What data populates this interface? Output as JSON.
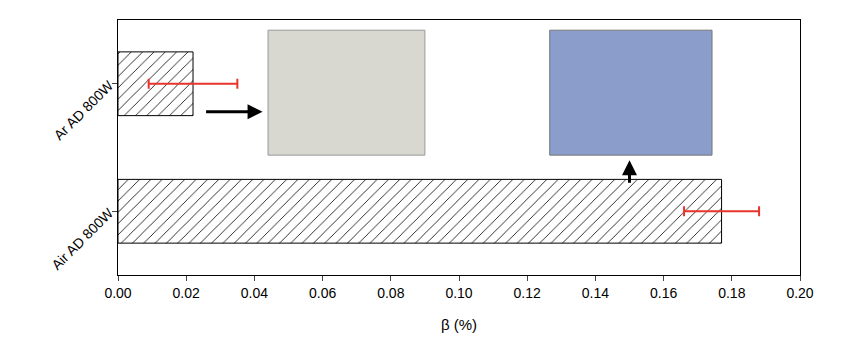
{
  "chart_data": {
    "type": "bar",
    "orientation": "horizontal",
    "categories": [
      "Ar AD 800W",
      "Air AD 800W"
    ],
    "values": [
      0.022,
      0.177
    ],
    "errors": [
      0.013,
      0.011
    ],
    "color": "#000000",
    "xlabel": "β (%)",
    "xlim": [
      0,
      0.2
    ],
    "xticks": [
      {
        "value": 0,
        "label": "0.00"
      },
      {
        "value": 0.02,
        "label": "0.02"
      },
      {
        "value": 0.04,
        "label": "0.04"
      },
      {
        "value": 0.06,
        "label": "0.06"
      },
      {
        "value": 0.08,
        "label": "0.08"
      },
      {
        "value": 0.1,
        "label": "0.10"
      },
      {
        "value": 0.12,
        "label": "0.12"
      },
      {
        "value": 0.14,
        "label": "0.14"
      },
      {
        "value": 0.16,
        "label": "0.16"
      },
      {
        "value": 0.18,
        "label": "0.18"
      },
      {
        "value": 0.2,
        "label": "0.20"
      }
    ],
    "grid": false
  }
}
